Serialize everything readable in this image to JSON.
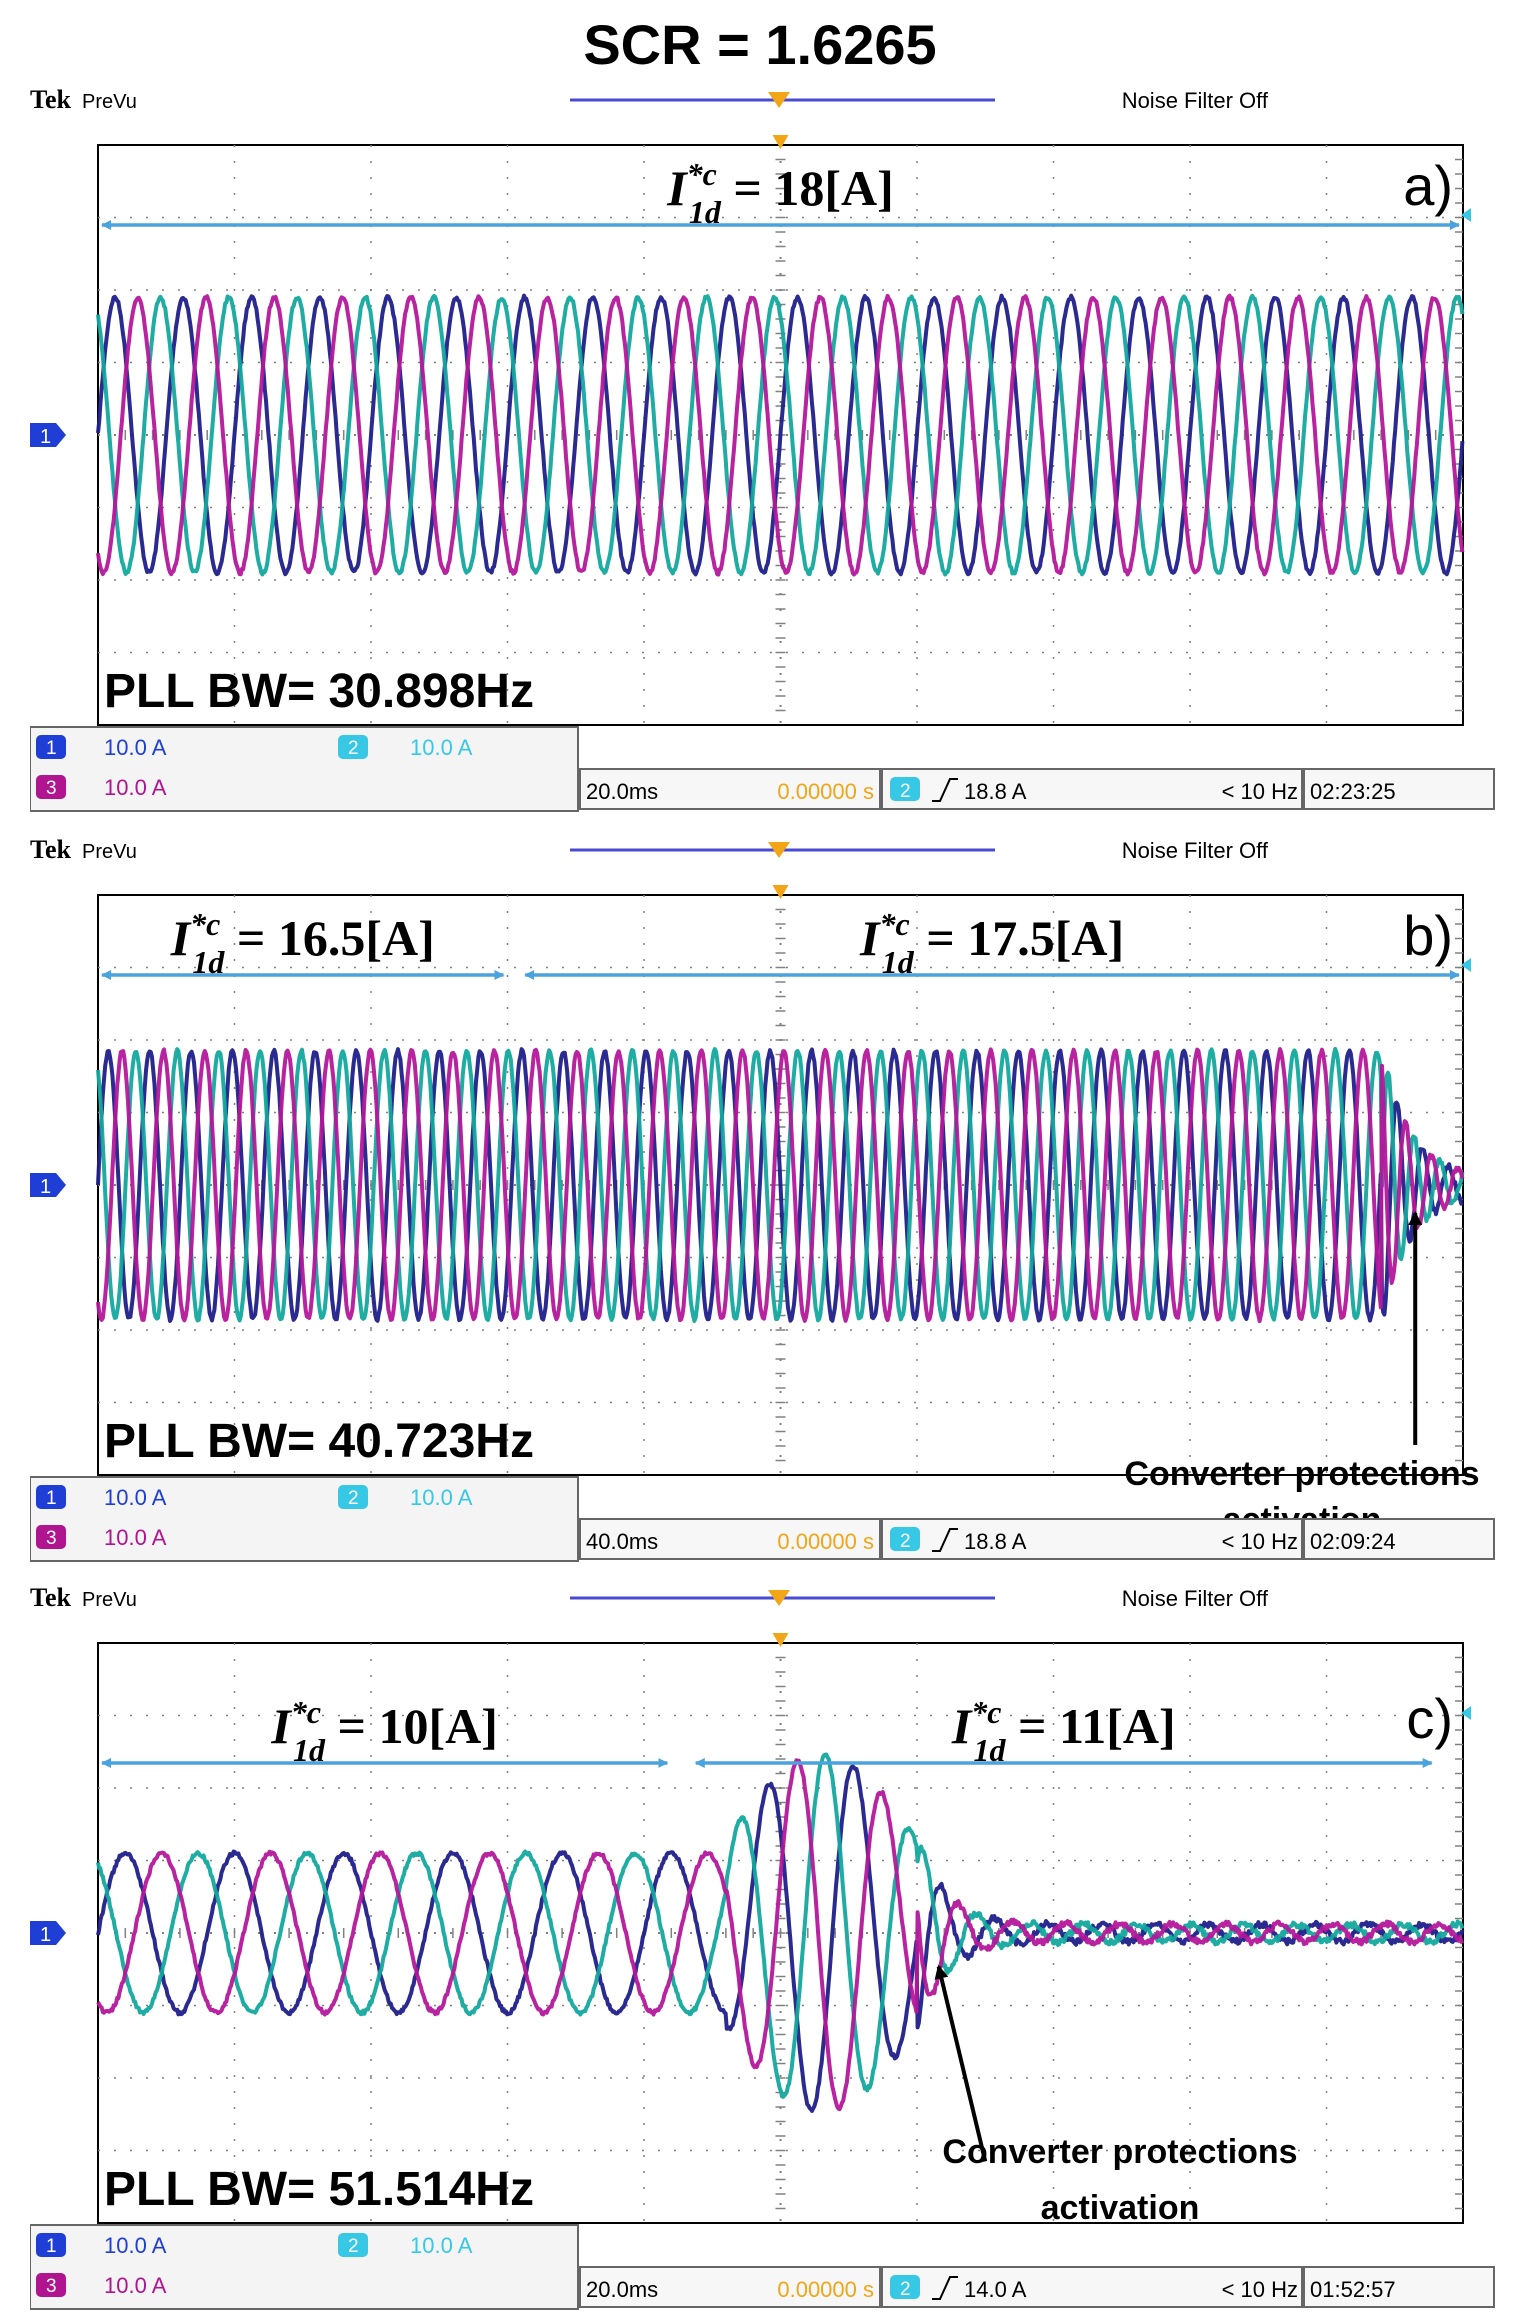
{
  "figure_title": "SCR = 1.6265",
  "colors": {
    "ch1": "#1f1f8a",
    "ch2": "#13a89e",
    "ch3": "#b4179a",
    "arrow": "#4aa3df",
    "grid": "#808080",
    "trigger": "#f2a516",
    "header_line": "#4a4ad0",
    "ch2_badge": "#37c8e6",
    "ch1_badge": "#1e3ed6",
    "ch3_badge": "#b0148f"
  },
  "chart_data": [
    {
      "type": "line",
      "panel_label": "a)",
      "header": {
        "brand": "Tek",
        "mode": "PreVu",
        "filter": "Noise Filter Off"
      },
      "grid": {
        "x_divisions": 10,
        "y_divisions": 8
      },
      "annotations": [
        {
          "text": "I*c1d = 18[A]",
          "main": "I",
          "sup": "*c",
          "sub": "1d",
          "rest": " = 18[A]",
          "span_div": [
            0,
            10
          ]
        }
      ],
      "pll_label": "PLL BW= 30.898Hz",
      "readouts": {
        "ch1": "10.0 A",
        "ch2": "10.0 A",
        "ch3": "10.0 A",
        "timebase": "20.0ms",
        "trigger_pos": "0.00000 s",
        "trigger_ch": "2",
        "trigger_level": "18.8 A",
        "trigger_freq": "< 10 Hz",
        "time": "02:23:25"
      },
      "channel_marker": "1",
      "signals": {
        "segments": [
          {
            "from_div": 0,
            "to_div": 10,
            "cycles_per_div": 2.0,
            "amplitude_div": 1.9
          }
        ],
        "collapse_div": null,
        "series": [
          {
            "channel": "1",
            "phase_deg": 0
          },
          {
            "channel": "2",
            "phase_deg": 120
          },
          {
            "channel": "3",
            "phase_deg": 240
          }
        ]
      },
      "callout": null
    },
    {
      "type": "line",
      "panel_label": "b)",
      "header": {
        "brand": "Tek",
        "mode": "PreVu",
        "filter": "Noise Filter Off"
      },
      "grid": {
        "x_divisions": 10,
        "y_divisions": 8
      },
      "annotations": [
        {
          "text": "I*c1d = 16.5[A]",
          "main": "I",
          "sup": "*c",
          "sub": "1d",
          "rest": " = 16.5[A]",
          "span_div": [
            0,
            3.0
          ]
        },
        {
          "text": "I*c1d = 17.5[A]",
          "main": "I",
          "sup": "*c",
          "sub": "1d",
          "rest": " = 17.5[A]",
          "span_div": [
            3.1,
            10
          ]
        }
      ],
      "pll_label": "PLL BW= 40.723Hz",
      "readouts": {
        "ch1": "10.0 A",
        "ch2": "10.0 A",
        "ch3": "10.0 A",
        "timebase": "40.0ms",
        "trigger_pos": "0.00000 s",
        "trigger_ch": "2",
        "trigger_level": "18.8 A",
        "trigger_freq": "< 10 Hz",
        "time": "02:09:24"
      },
      "channel_marker": "1",
      "signals": {
        "segments": [
          {
            "from_div": 0,
            "to_div": 9.4,
            "cycles_per_div": 3.3,
            "amplitude_div": 1.85
          }
        ],
        "collapse_div": 9.4,
        "series": [
          {
            "channel": "1",
            "phase_deg": 0
          },
          {
            "channel": "2",
            "phase_deg": 120
          },
          {
            "channel": "3",
            "phase_deg": 240
          }
        ]
      },
      "callout": {
        "lines": [
          "Converter protections",
          "activation"
        ],
        "target_div": [
          9.65,
          4.0
        ]
      }
    },
    {
      "type": "line",
      "panel_label": "c)",
      "header": {
        "brand": "Tek",
        "mode": "PreVu",
        "filter": "Noise Filter Off"
      },
      "grid": {
        "x_divisions": 10,
        "y_divisions": 8
      },
      "annotations": [
        {
          "text": "I*c1d = 10[A]",
          "main": "I",
          "sup": "*c",
          "sub": "1d",
          "rest": " = 10[A]",
          "span_div": [
            0,
            4.2
          ]
        },
        {
          "text": "I*c1d = 11[A]",
          "main": "I",
          "sup": "*c",
          "sub": "1d",
          "rest": " = 11[A]",
          "span_div": [
            4.35,
            9.8
          ]
        }
      ],
      "pll_label": "PLL BW= 51.514Hz",
      "readouts": {
        "ch1": "10.0 A",
        "ch2": "10.0 A",
        "ch3": "10.0 A",
        "timebase": "20.0ms",
        "trigger_pos": "0.00000 s",
        "trigger_ch": "2",
        "trigger_level": "14.0 A",
        "trigger_freq": "< 10 Hz",
        "time": "01:52:57"
      },
      "channel_marker": "1",
      "signals": {
        "segments": [
          {
            "from_div": 0,
            "to_div": 4.6,
            "cycles_per_div": 1.25,
            "amplitude_div": 1.1
          },
          {
            "from_div": 4.6,
            "to_div": 6.0,
            "cycles_per_div": 1.6,
            "amplitude_div": 1.3
          }
        ],
        "collapse_div": 6.0,
        "series": [
          {
            "channel": "1",
            "phase_deg": 0
          },
          {
            "channel": "2",
            "phase_deg": 120
          },
          {
            "channel": "3",
            "phase_deg": 240
          }
        ]
      },
      "callout": {
        "lines": [
          "Converter protections",
          "activation"
        ],
        "target_div": [
          6.1,
          4.05
        ]
      }
    }
  ]
}
